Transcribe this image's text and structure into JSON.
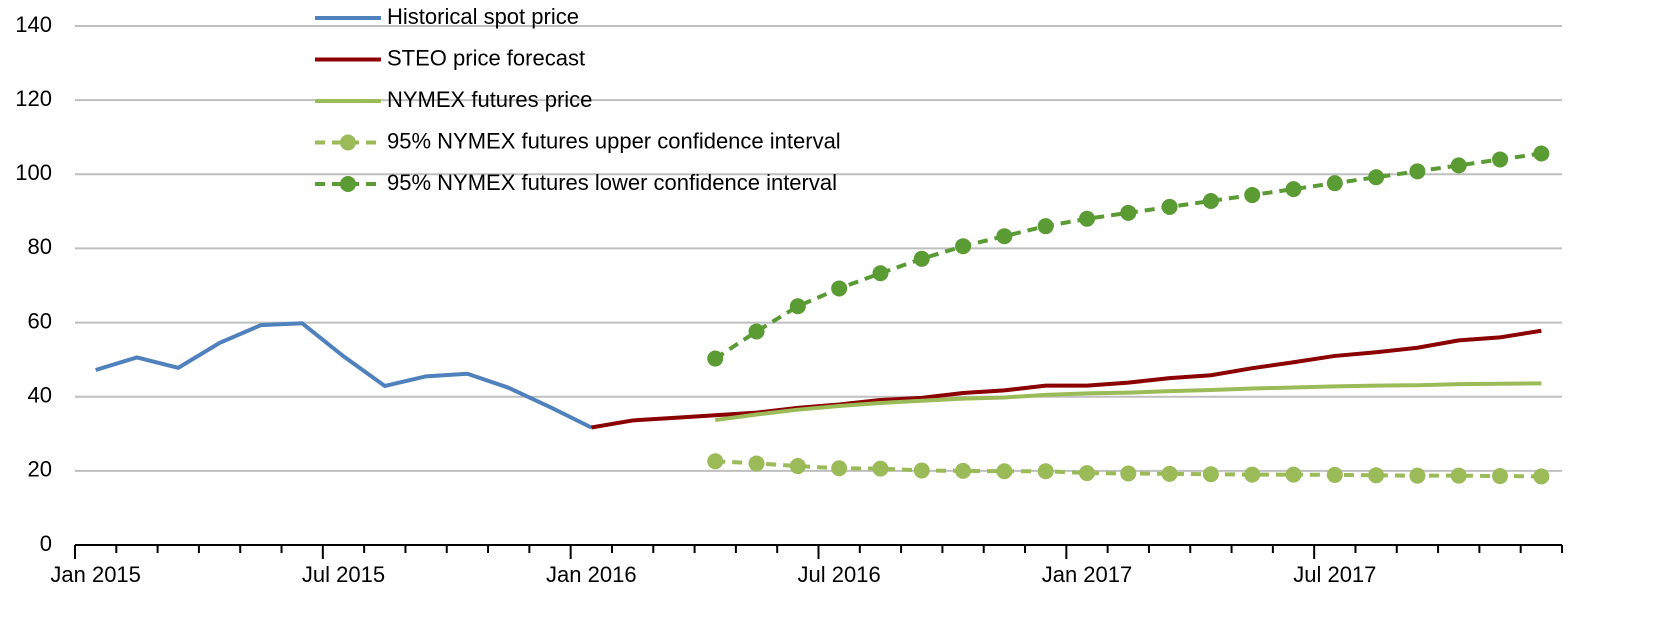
{
  "chart_data": {
    "type": "line",
    "categories": [
      "Jan 2015",
      null,
      null,
      null,
      null,
      null,
      "Jul 2015",
      null,
      null,
      null,
      null,
      null,
      "Jan 2016",
      null,
      null,
      null,
      null,
      null,
      "Jul 2016",
      null,
      null,
      null,
      null,
      null,
      "Jan 2017",
      null,
      null,
      null,
      null,
      null,
      "Jul 2017",
      null,
      null,
      null,
      null,
      null
    ],
    "ylim": [
      0,
      140
    ],
    "yticks": [
      0,
      20,
      40,
      60,
      80,
      100,
      120,
      140
    ],
    "grid": true,
    "legend": "top",
    "series": [
      {
        "name": "Historical spot price",
        "color": "#4f81bd",
        "dashed": false,
        "markers": false,
        "values": [
          47.2,
          50.6,
          47.8,
          54.5,
          59.3,
          59.8,
          50.9,
          42.9,
          45.5,
          46.2,
          42.4,
          37.2,
          31.7,
          null,
          null,
          null,
          null,
          null,
          null,
          null,
          null,
          null,
          null,
          null,
          null,
          null,
          null,
          null,
          null,
          null,
          null,
          null,
          null,
          null,
          null,
          null
        ]
      },
      {
        "name": "STEO price forecast",
        "color": "#8b0000",
        "dashed": false,
        "markers": false,
        "values": [
          null,
          null,
          null,
          null,
          null,
          null,
          null,
          null,
          null,
          null,
          null,
          null,
          31.7,
          33.6,
          34.3,
          35,
          35.7,
          37,
          37.9,
          39.1,
          39.7,
          41,
          41.7,
          43,
          43,
          43.8,
          45,
          45.8,
          47.7,
          49.3,
          51,
          52,
          53.2,
          55.2,
          56,
          57.8
        ]
      },
      {
        "name": "NYMEX futures price",
        "color": "#9bbb59",
        "dashed": false,
        "markers": false,
        "values": [
          null,
          null,
          null,
          null,
          null,
          null,
          null,
          null,
          null,
          null,
          null,
          null,
          null,
          null,
          null,
          33.7,
          35.2,
          36.5,
          37.5,
          38.3,
          38.9,
          39.5,
          39.8,
          40.5,
          40.9,
          41.1,
          41.5,
          41.8,
          42.2,
          42.5,
          42.8,
          43,
          43.1,
          43.4,
          43.5,
          43.6
        ]
      },
      {
        "name": "95% NYMEX futures upper confidence interval",
        "color": "#9bbb59",
        "dashed": true,
        "markers": true,
        "values": [
          null,
          null,
          null,
          null,
          null,
          null,
          null,
          null,
          null,
          null,
          null,
          null,
          null,
          null,
          null,
          22.6,
          22,
          21.3,
          20.7,
          20.6,
          20.1,
          20,
          19.9,
          19.9,
          19.4,
          19.3,
          19.2,
          19.1,
          19,
          19,
          18.9,
          18.8,
          18.7,
          18.7,
          18.6,
          18.5
        ]
      },
      {
        "name": "95% NYMEX futures lower confidence interval",
        "color": "#5a9b34",
        "dashed": true,
        "markers": true,
        "values": [
          null,
          null,
          null,
          null,
          null,
          null,
          null,
          null,
          null,
          null,
          null,
          null,
          null,
          null,
          null,
          50.3,
          57.6,
          64.4,
          69.2,
          73.3,
          77.2,
          80.6,
          83.3,
          86,
          88,
          89.6,
          91.2,
          92.8,
          94.4,
          96,
          97.6,
          99.2,
          100.8,
          102.4,
          104,
          105.6
        ]
      }
    ]
  }
}
